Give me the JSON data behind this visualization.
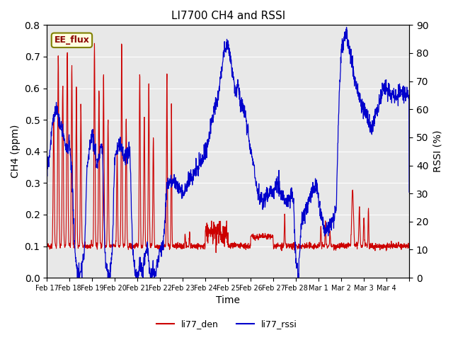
{
  "title": "LI7700 CH4 and RSSI",
  "xlabel": "Time",
  "ylabel_left": "CH4 (ppm)",
  "ylabel_right": "RSSI (%)",
  "annotation": "EE_flux",
  "ylim_left": [
    0.0,
    0.8
  ],
  "ylim_right": [
    0,
    90
  ],
  "yticks_left": [
    0.0,
    0.1,
    0.2,
    0.3,
    0.4,
    0.5,
    0.6,
    0.7,
    0.8
  ],
  "yticks_right": [
    0,
    10,
    20,
    30,
    40,
    50,
    60,
    70,
    80,
    90
  ],
  "color_ch4": "#cc0000",
  "color_rssi": "#0000cc",
  "bg_color": "#e8e8e8",
  "legend_labels": [
    "li77_den",
    "li77_rssi"
  ],
  "x_tick_positions": [
    0,
    1,
    2,
    3,
    4,
    5,
    6,
    7,
    8,
    9,
    10,
    11,
    12,
    13,
    14,
    15,
    16
  ],
  "x_tick_labels": [
    "Feb 17",
    "Feb 18",
    "Feb 19",
    "Feb 20",
    "Feb 21",
    "Feb 22",
    "Feb 23",
    "Feb 24",
    "Feb 25",
    "Feb 26",
    "Feb 27",
    "Feb 28",
    "Mar 1",
    "Mar 2",
    "Mar 3",
    "Mar 4",
    ""
  ],
  "num_points": 1700,
  "seed": 42
}
